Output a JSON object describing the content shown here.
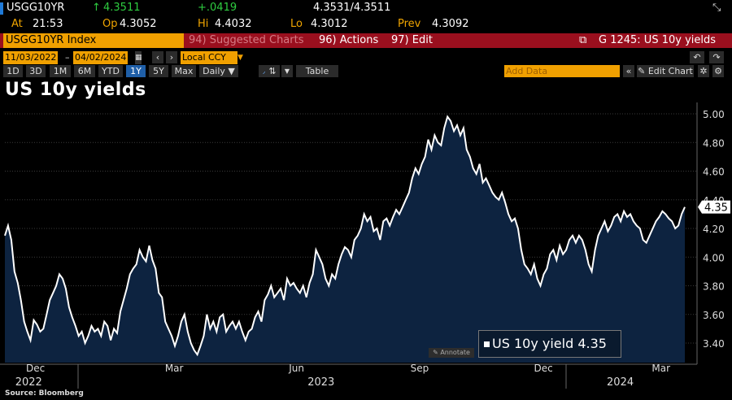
{
  "header": {
    "ticker": "USGG10YR",
    "last": "4.3511",
    "change": "+.0419",
    "bid_ask": "4.3531/4.3511",
    "at_label": "At",
    "at_value": "21:53",
    "op_label": "Op",
    "op_value": "4.3052",
    "hi_label": "Hi",
    "hi_value": "4.4032",
    "lo_label": "Lo",
    "lo_value": "4.3012",
    "prev_label": "Prev",
    "prev_value": "4.3092"
  },
  "toolbar": {
    "index_name": "USGG10YR Index",
    "suggested": "94) Suggested Charts",
    "actions": "96) Actions",
    "edit": "97) Edit",
    "chart_id": "G 1245: US 10y yields",
    "start_date": "11/03/2022",
    "end_date": "04/02/2024",
    "currency": "Local CCY",
    "ranges": [
      "1D",
      "3D",
      "1M",
      "6M",
      "YTD",
      "1Y",
      "5Y",
      "Max"
    ],
    "active_range": "1Y",
    "frequency": "Daily",
    "table": "Table",
    "add_data": "Add Data",
    "edit_chart": "Edit Chart"
  },
  "page_title": "US 10y yields",
  "source": "Source: Bloomberg",
  "annotate": "Annotate",
  "chart_data": {
    "type": "area",
    "title": "US 10y yields",
    "xlabel": "",
    "ylabel": "",
    "ylim": [
      3.25,
      5.1
    ],
    "y_ticks": [
      "5.00",
      "4.80",
      "4.60",
      "4.40",
      "4.20",
      "4.00",
      "3.80",
      "3.60",
      "3.40"
    ],
    "x_ticks": [
      {
        "label": "Dec",
        "t": 0.045
      },
      {
        "label": "Mar",
        "t": 0.249
      },
      {
        "label": "Jun",
        "t": 0.429
      },
      {
        "label": "Sep",
        "t": 0.61
      },
      {
        "label": "Dec",
        "t": 0.792
      },
      {
        "label": "Mar",
        "t": 0.965
      }
    ],
    "year_labels": [
      {
        "label": "2022",
        "t": 0.035
      },
      {
        "label": "2023",
        "t": 0.465
      },
      {
        "label": "2024",
        "t": 0.905
      }
    ],
    "last_value_label": "4.35",
    "legend": "US 10y yield 4.35",
    "colors": {
      "line": "#ffffff",
      "fill": "#0d2340",
      "grid": "#3a3a3a",
      "value_box": "#ffffff"
    },
    "series": [
      {
        "name": "US 10y yield",
        "values": [
          4.15,
          4.22,
          4.12,
          3.9,
          3.82,
          3.7,
          3.55,
          3.48,
          3.42,
          3.56,
          3.53,
          3.48,
          3.5,
          3.6,
          3.7,
          3.75,
          3.8,
          3.88,
          3.85,
          3.78,
          3.65,
          3.58,
          3.52,
          3.45,
          3.48,
          3.4,
          3.45,
          3.52,
          3.48,
          3.5,
          3.45,
          3.55,
          3.52,
          3.42,
          3.5,
          3.47,
          3.62,
          3.7,
          3.78,
          3.88,
          3.92,
          3.95,
          4.05,
          4.0,
          3.97,
          4.08,
          3.98,
          3.92,
          3.75,
          3.72,
          3.55,
          3.5,
          3.45,
          3.38,
          3.45,
          3.55,
          3.6,
          3.48,
          3.4,
          3.35,
          3.32,
          3.38,
          3.45,
          3.6,
          3.5,
          3.55,
          3.48,
          3.58,
          3.6,
          3.48,
          3.52,
          3.55,
          3.5,
          3.55,
          3.48,
          3.42,
          3.48,
          3.5,
          3.58,
          3.62,
          3.55,
          3.7,
          3.74,
          3.8,
          3.72,
          3.75,
          3.78,
          3.7,
          3.85,
          3.8,
          3.82,
          3.78,
          3.75,
          3.8,
          3.72,
          3.82,
          3.88,
          4.05,
          4.0,
          3.95,
          3.85,
          3.8,
          3.88,
          3.85,
          3.95,
          4.02,
          4.07,
          4.05,
          4.0,
          4.12,
          4.15,
          4.2,
          4.3,
          4.25,
          4.28,
          4.18,
          4.2,
          4.12,
          4.25,
          4.27,
          4.22,
          4.28,
          4.33,
          4.3,
          4.35,
          4.4,
          4.45,
          4.55,
          4.62,
          4.58,
          4.65,
          4.7,
          4.82,
          4.75,
          4.85,
          4.8,
          4.78,
          4.9,
          4.98,
          4.95,
          4.88,
          4.92,
          4.85,
          4.9,
          4.75,
          4.7,
          4.62,
          4.58,
          4.65,
          4.52,
          4.55,
          4.5,
          4.45,
          4.42,
          4.4,
          4.45,
          4.38,
          4.3,
          4.25,
          4.27,
          4.2,
          4.05,
          3.95,
          3.92,
          3.88,
          3.95,
          3.85,
          3.8,
          3.88,
          3.92,
          4.02,
          4.05,
          3.98,
          4.08,
          4.02,
          4.05,
          4.12,
          4.15,
          4.1,
          4.15,
          4.12,
          4.05,
          3.95,
          3.9,
          4.05,
          4.15,
          4.2,
          4.25,
          4.18,
          4.22,
          4.28,
          4.3,
          4.25,
          4.32,
          4.28,
          4.3,
          4.25,
          4.22,
          4.2,
          4.12,
          4.1,
          4.15,
          4.2,
          4.25,
          4.28,
          4.32,
          4.3,
          4.27,
          4.25,
          4.2,
          4.22,
          4.3,
          4.35
        ]
      }
    ]
  }
}
